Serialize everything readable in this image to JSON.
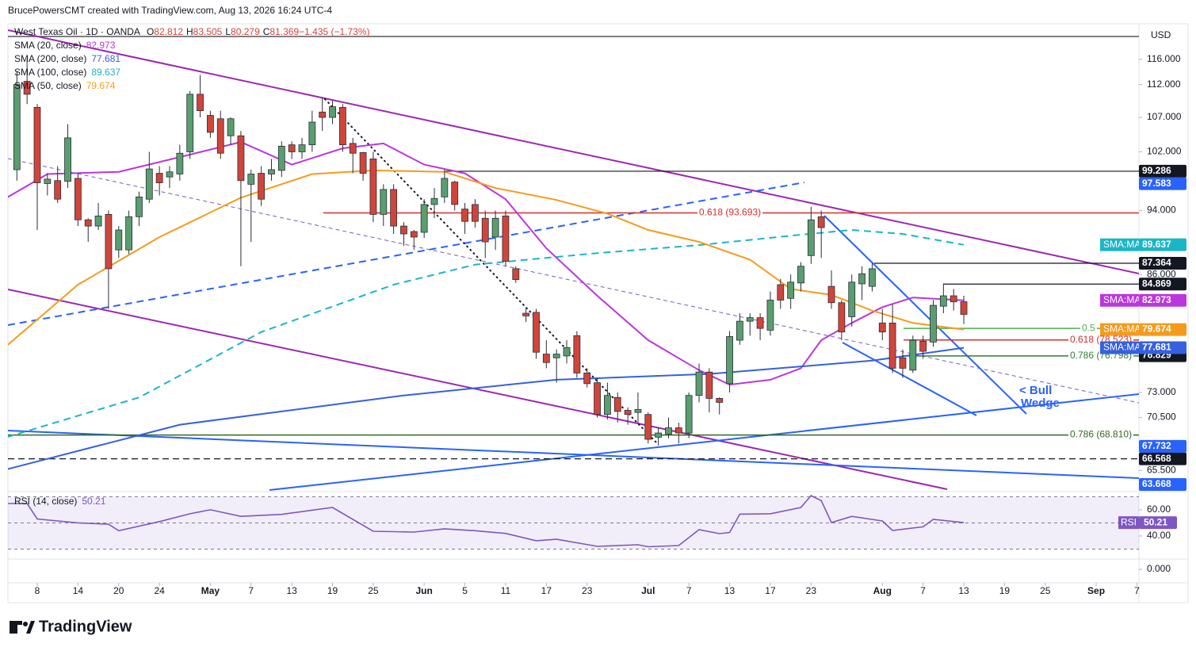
{
  "header": {
    "credit": "BrucePowersCMT created with TradingView.com, Aug 13, 2026 16:24 UTC-4"
  },
  "chart_data": {
    "type": "candlestick",
    "legend": {
      "symbol": "West Texas Oil · 1D · OANDA",
      "items": [
        {
          "label": "O",
          "value": "82.812"
        },
        {
          "label": "H",
          "value": "83.505"
        },
        {
          "label": "L",
          "value": "80.279"
        },
        {
          "label": "C",
          "value": "81.369"
        },
        {
          "label": "",
          "value": "−1.435 (−1.73%)"
        }
      ]
    },
    "currency": "USD",
    "up_color": "#5a9e6f",
    "down_color": "#d0453a",
    "log_scale": true,
    "grid": false,
    "xlim": [
      -0.88,
      110.2
    ],
    "xticks": [
      {
        "value": 2,
        "label": "8"
      },
      {
        "value": 6,
        "label": "14"
      },
      {
        "value": 10,
        "label": "20"
      },
      {
        "value": 14,
        "label": "24"
      },
      {
        "value": 19,
        "label": "May"
      },
      {
        "value": 23,
        "label": "7"
      },
      {
        "value": 27,
        "label": "13"
      },
      {
        "value": 31,
        "label": "19"
      },
      {
        "value": 35,
        "label": "25"
      },
      {
        "value": 40,
        "label": "Jun"
      },
      {
        "value": 44,
        "label": "5"
      },
      {
        "value": 48,
        "label": "11"
      },
      {
        "value": 52,
        "label": "17"
      },
      {
        "value": 56,
        "label": "23"
      },
      {
        "value": 62,
        "label": "Jul"
      },
      {
        "value": 66,
        "label": "7"
      },
      {
        "value": 70,
        "label": "13"
      },
      {
        "value": 74,
        "label": "17"
      },
      {
        "value": 78,
        "label": "23"
      },
      {
        "value": 85,
        "label": "Aug"
      },
      {
        "value": 89,
        "label": "7"
      },
      {
        "value": 93,
        "label": "13"
      },
      {
        "value": 97,
        "label": "19"
      },
      {
        "value": 101,
        "label": "25"
      },
      {
        "value": 106,
        "label": "Sep"
      },
      {
        "value": 110,
        "label": "7"
      }
    ],
    "ylim": [
      63.6,
      121.2
    ],
    "yticks": [
      {
        "value": 116,
        "label": "116.000"
      },
      {
        "value": 112,
        "label": "112.000"
      },
      {
        "value": 107,
        "label": "107.000"
      },
      {
        "value": 102,
        "label": "102.000"
      },
      {
        "value": 94,
        "label": "94.000"
      },
      {
        "value": 86,
        "label": "86.000"
      },
      {
        "value": 73,
        "label": "73.000"
      },
      {
        "value": 70.5,
        "label": "70.500"
      },
      {
        "value": 65.5,
        "label": "65.500"
      }
    ],
    "candles": {
      "open": [
        99.5,
        112.5,
        108.5,
        97.6,
        98,
        97.9,
        98.3,
        92.8,
        92,
        93.5,
        89,
        89,
        93.2,
        95.5,
        99,
        98.5,
        98.9,
        102,
        110.5,
        107.3,
        106.8,
        104.3,
        104.3,
        97.5,
        99,
        98.9,
        99.4,
        103,
        102,
        103,
        107.8,
        107,
        108.5,
        103.2,
        101.9,
        101,
        93.5,
        96.8,
        92,
        91.3,
        91.2,
        94.8,
        95.8,
        97.8,
        94.2,
        94.8,
        93,
        90.6,
        93.3,
        86.7,
        81.5,
        81.6,
        77,
        76.6,
        76.8,
        79,
        75,
        74,
        70.8,
        72.5,
        71.2,
        71,
        70.8,
        68.6,
        68.9,
        69.5,
        69,
        72.7,
        75.1,
        72.4,
        73.9,
        78.5,
        80.6,
        81,
        79.6,
        84.8,
        83.2,
        85,
        88.3,
        93.2,
        84.6,
        82.7,
        81.1,
        84.9,
        84.6,
        80.4,
        80.4,
        76.6,
        75.3,
        78.4,
        78.3,
        82.3,
        83.5,
        82.812
      ],
      "high": [
        114,
        116,
        109,
        99,
        100,
        106,
        99,
        93,
        95,
        94,
        92,
        94,
        96.5,
        102,
        100,
        100,
        103,
        111,
        113.5,
        108,
        108,
        107,
        105,
        99.5,
        100,
        101,
        103.5,
        103.5,
        104,
        108,
        110,
        109.5,
        109,
        104,
        102,
        102,
        97.5,
        97.5,
        92.5,
        91.5,
        95.5,
        97,
        99.5,
        98,
        95,
        95.5,
        94,
        94,
        94,
        87,
        82,
        82,
        78.5,
        77.5,
        78.5,
        79.5,
        75.5,
        74.5,
        74,
        73,
        71.5,
        73,
        71,
        69.5,
        70.5,
        70,
        73,
        76,
        75.5,
        72.5,
        79.5,
        81.5,
        81.5,
        81.5,
        84,
        85.5,
        86,
        87.5,
        94.5,
        94,
        86.5,
        83,
        86,
        87,
        87.4,
        82,
        82.5,
        77.5,
        79,
        79,
        83,
        84.9,
        84.3,
        83.505
      ],
      "low": [
        98,
        109,
        91.5,
        96,
        95,
        97,
        92,
        90,
        91.5,
        82,
        88,
        88.5,
        92,
        95,
        96,
        97,
        98,
        101,
        107,
        104,
        101,
        103,
        87,
        90,
        94.6,
        98,
        98.5,
        101,
        101,
        102,
        105,
        106,
        102,
        99,
        98,
        92.5,
        92,
        91,
        89.5,
        89,
        90.5,
        93,
        95,
        94,
        91,
        91.8,
        88,
        89,
        87,
        85,
        80.5,
        76.5,
        75.5,
        74,
        76,
        74.5,
        73.5,
        70.5,
        70.3,
        70,
        69.8,
        70,
        68,
        67.8,
        68.5,
        68,
        68.5,
        72,
        71,
        70.8,
        73,
        78,
        79,
        78.5,
        79,
        82,
        82,
        84,
        87.3,
        88,
        82,
        78.5,
        80,
        83,
        84,
        78.5,
        75,
        74.5,
        75,
        76.5,
        77.8,
        81.5,
        81.8,
        80.279
      ],
      "close": [
        112,
        110.5,
        97.7,
        98.2,
        95.5,
        104,
        92.8,
        92,
        93.3,
        86.7,
        91.5,
        93.2,
        95.8,
        99.6,
        97.7,
        99.2,
        101.8,
        110.5,
        108,
        104.8,
        101.8,
        106.8,
        98,
        98.9,
        95.5,
        99.5,
        102.8,
        102,
        103,
        106.3,
        107,
        108.6,
        103,
        101.8,
        99,
        93.5,
        96.8,
        92,
        91,
        90.6,
        94.8,
        95.6,
        98.3,
        94.8,
        92.6,
        92.6,
        90,
        93,
        87.6,
        85.4,
        81.2,
        77.2,
        76.1,
        77,
        77.7,
        75,
        73.9,
        70.8,
        72.7,
        71.1,
        70.8,
        71.3,
        68.4,
        69,
        69.5,
        69,
        72.7,
        75.1,
        72.4,
        72,
        78.9,
        80.6,
        81,
        79.8,
        83,
        83,
        85.1,
        87,
        92.8,
        91.8,
        82.7,
        79.4,
        85.1,
        86.1,
        86.7,
        79.4,
        75.5,
        75.5,
        78.5,
        77.3,
        82.4,
        83.5,
        82.8,
        81.369
      ]
    },
    "series": [
      {
        "name": "SMA (20, close)",
        "tag": "SMA:MA",
        "color": "#bb36dd",
        "x": [
          -1,
          3,
          10,
          17,
          22,
          27,
          32,
          36,
          40,
          44,
          48,
          52,
          57,
          62,
          67,
          70,
          74,
          77,
          79,
          82,
          85,
          88,
          93
        ],
        "values": [
          95.7,
          98.9,
          99.2,
          101.6,
          103.4,
          100.2,
          102.5,
          103.2,
          100.2,
          99,
          95.5,
          89.2,
          83.5,
          78.5,
          75.3,
          73.8,
          74.3,
          75.5,
          78.5,
          80.4,
          82.2,
          83.3,
          82.973
        ]
      },
      {
        "name": "SMA (200, close)",
        "tag": "SMA:MA",
        "color": "#3560e0",
        "x": [
          -1,
          16,
          38,
          53,
          68,
          84,
          93
        ],
        "values": [
          65.6,
          69.8,
          72.7,
          74.3,
          74.9,
          76.3,
          77.681
        ]
      },
      {
        "name": "SMA (100, close)",
        "tag": "SMA:MA",
        "color": "#1bb5c8",
        "dash": true,
        "x": [
          -1,
          12,
          24,
          37,
          45,
          57,
          67,
          77,
          82,
          87,
          93
        ],
        "values": [
          68.6,
          72.5,
          79.4,
          84.8,
          87.2,
          88.6,
          89.6,
          90.9,
          91.5,
          91,
          89.637
        ]
      },
      {
        "name": "SMA (50, close)",
        "tag": "SMA:MA",
        "color": "#f59b1c",
        "x": [
          -1,
          6,
          14,
          22,
          29,
          35,
          42,
          47,
          53,
          58,
          62,
          67,
          72,
          76,
          80,
          84,
          88,
          93
        ],
        "values": [
          77.9,
          84.8,
          90.6,
          95.7,
          98.9,
          99.4,
          99.2,
          97,
          95.4,
          93.6,
          91.5,
          90,
          87.8,
          84.3,
          83.6,
          81.8,
          80.4,
          79.674
        ]
      }
    ],
    "levels": [
      {
        "value": 99.286,
        "color": "#131722"
      },
      {
        "value": 93.693,
        "color": "#d32f2f",
        "label": "0.618 (93.693)"
      },
      {
        "value": 87.364,
        "color": "#131722"
      },
      {
        "value": 84.869,
        "color": "#131722"
      },
      {
        "value": 79.8,
        "color": "#4caf50",
        "label": "0.5"
      },
      {
        "value": 78.523,
        "color": "#d32f2f",
        "label": "0.618 (78.523)"
      },
      {
        "value": 76.798,
        "color": "#2e7d32",
        "label": "0.786 (76.798)"
      },
      {
        "value": 68.81,
        "color": "#33691e",
        "label": "0.786 (68.810)"
      },
      {
        "value": 66.568,
        "color": "#131722",
        "dash": true
      }
    ],
    "price_labels": [
      {
        "value": 97.583,
        "color": "#2962ff"
      },
      {
        "value": 76.829,
        "color": "#131722"
      },
      {
        "value": 67.732,
        "color": "#2962ff"
      },
      {
        "value": 63.668,
        "color": "#2962ff"
      }
    ],
    "annotation": [
      "< Bull",
      "Wedge"
    ],
    "rsi": {
      "name": "RSI (14, close)",
      "tag": "RSI",
      "color": "#7e57c2",
      "ylim": [
        22.4,
        73.9
      ],
      "yticks": [
        {
          "value": 60,
          "label": "60.00"
        },
        {
          "value": 40,
          "label": "40.00"
        }
      ],
      "levels": [
        70,
        50,
        30
      ],
      "x": [
        -1,
        1,
        2,
        6,
        9,
        10,
        14,
        17,
        19,
        22,
        26,
        31,
        35,
        39,
        42,
        45,
        48,
        51,
        53,
        57,
        61,
        62,
        65,
        67,
        69,
        70,
        71,
        74,
        77,
        78,
        79,
        80,
        82,
        85,
        86,
        89,
        90,
        93
      ],
      "values": [
        64.8,
        64.8,
        53,
        50,
        49,
        44,
        51,
        57,
        60,
        55,
        56.5,
        61.8,
        43.6,
        43,
        45.5,
        44,
        42,
        36.4,
        37.5,
        32.1,
        33.3,
        31.8,
        32.7,
        44.8,
        41.8,
        42.7,
        56.7,
        57,
        61.8,
        70.9,
        67,
        50.3,
        55,
        51.5,
        44.2,
        47,
        52.7,
        50.21
      ]
    },
    "lower_pane": {
      "yticks": [
        {
          "value": 0,
          "label": "0.000"
        }
      ]
    }
  },
  "footer": {
    "brand": "TradingView"
  }
}
